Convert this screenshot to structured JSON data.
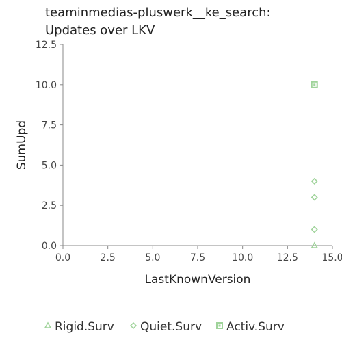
{
  "chart_data": {
    "type": "scatter",
    "title": [
      "teaminmedias-pluswerk__ke_search:",
      "Updates over LKV"
    ],
    "xlabel": "LastKnownVersion",
    "ylabel": "SumUpd",
    "xlim": [
      0,
      15
    ],
    "ylim": [
      0,
      12.5
    ],
    "x_ticks": [
      "0.0",
      "2.5",
      "5.0",
      "7.5",
      "10.0",
      "12.5",
      "15.0"
    ],
    "y_ticks": [
      "0.0",
      "2.5",
      "5.0",
      "7.5",
      "10.0",
      "12.5"
    ],
    "grid": false,
    "legend_position": "bottom",
    "series": [
      {
        "name": "Rigid.Surv",
        "marker": "triangle",
        "color": "#9fd39a",
        "points": [
          {
            "x": 14,
            "y": 0
          }
        ]
      },
      {
        "name": "Quiet.Surv",
        "marker": "diamond",
        "color": "#9fd39a",
        "points": [
          {
            "x": 14,
            "y": 1
          },
          {
            "x": 14,
            "y": 3
          },
          {
            "x": 14,
            "y": 4
          }
        ]
      },
      {
        "name": "Activ.Surv",
        "marker": "square",
        "color": "#9fd39a",
        "points": [
          {
            "x": 14,
            "y": 10
          }
        ]
      }
    ]
  }
}
